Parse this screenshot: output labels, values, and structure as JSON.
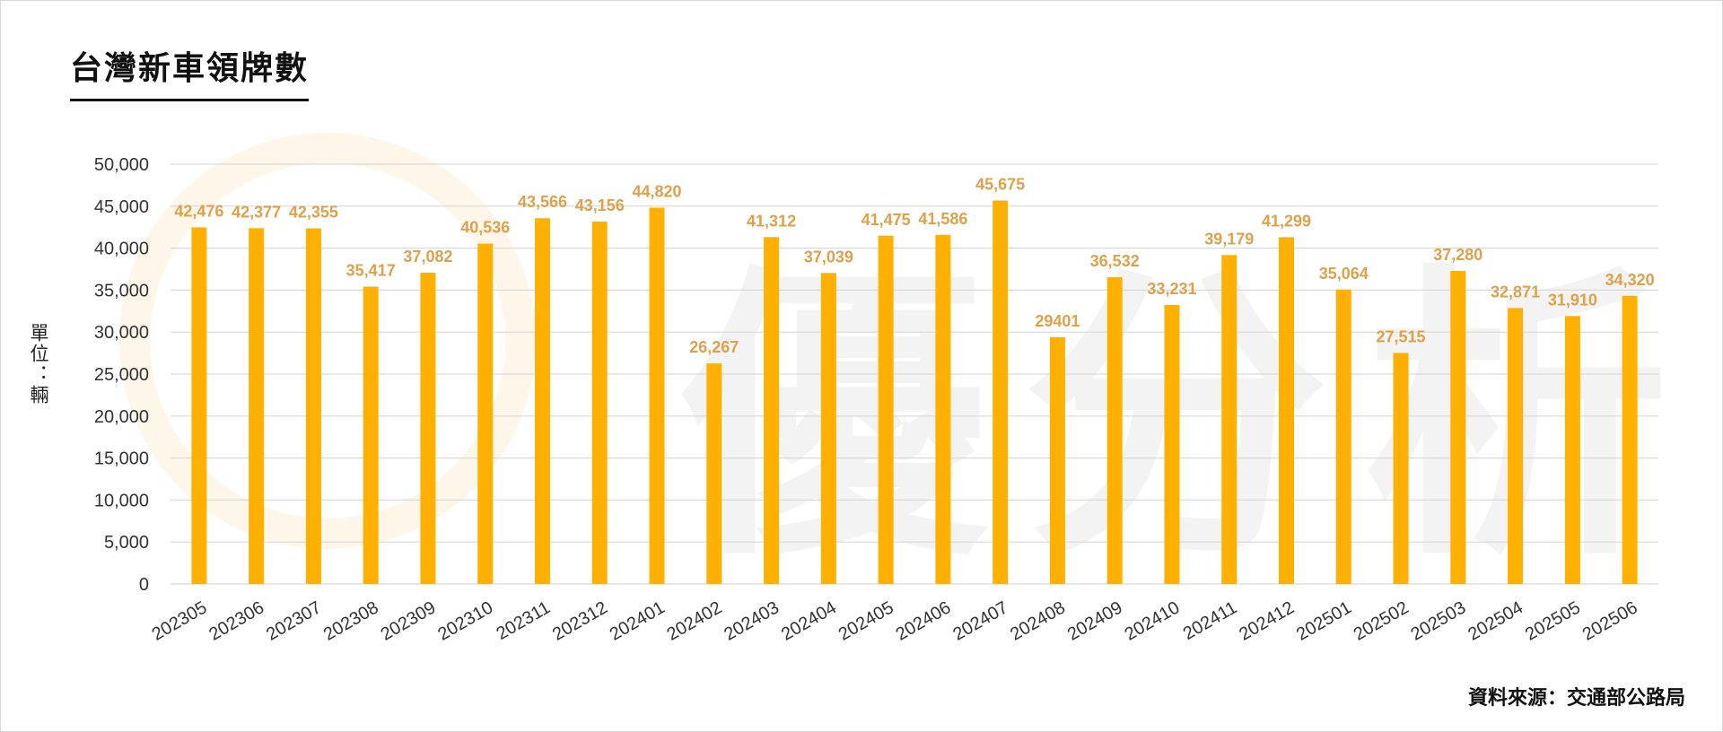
{
  "header": {
    "title": "台灣新車領牌數"
  },
  "footer": {
    "source": "資料來源：交通部公路局"
  },
  "colors": {
    "bar": "#FFB000",
    "label": "#E0A04A",
    "grid": "#d9d9d9",
    "axis_text": "#333333"
  },
  "watermark": {
    "text": "優分析"
  },
  "chart_data": {
    "type": "bar",
    "title": "台灣新車領牌數",
    "ylabel": "單位：輛",
    "xlabel": "",
    "ylim": [
      0,
      50000
    ],
    "yticks": [
      "0",
      "5,000",
      "10,000",
      "15,000",
      "20,000",
      "25,000",
      "30,000",
      "35,000",
      "40,000",
      "45,000",
      "50,000"
    ],
    "categories": [
      "202305",
      "202306",
      "202307",
      "202308",
      "202309",
      "202310",
      "202311",
      "202312",
      "202401",
      "202402",
      "202403",
      "202404",
      "202405",
      "202406",
      "202407",
      "202408",
      "202409",
      "202410",
      "202411",
      "202412",
      "202501",
      "202502",
      "202503",
      "202504",
      "202505",
      "202506"
    ],
    "values": [
      42476,
      42377,
      42355,
      35417,
      37082,
      40536,
      43566,
      43156,
      44820,
      26267,
      41312,
      37039,
      41475,
      41586,
      45675,
      29401,
      36532,
      33231,
      39179,
      41299,
      35064,
      27515,
      37280,
      32871,
      31910,
      34320
    ],
    "data_labels": [
      "42,476",
      "42,377",
      "42,355",
      "35,417",
      "37,082",
      "40,536",
      "43,566",
      "43,156",
      "44,820",
      "26,267",
      "41,312",
      "37,039",
      "41,475",
      "41,586",
      "45,675",
      "29401",
      "36,532",
      "33,231",
      "39,179",
      "41,299",
      "35,064",
      "27,515",
      "37,280",
      "32,871",
      "31,910",
      "34,320"
    ],
    "grid": true,
    "legend": "none"
  }
}
